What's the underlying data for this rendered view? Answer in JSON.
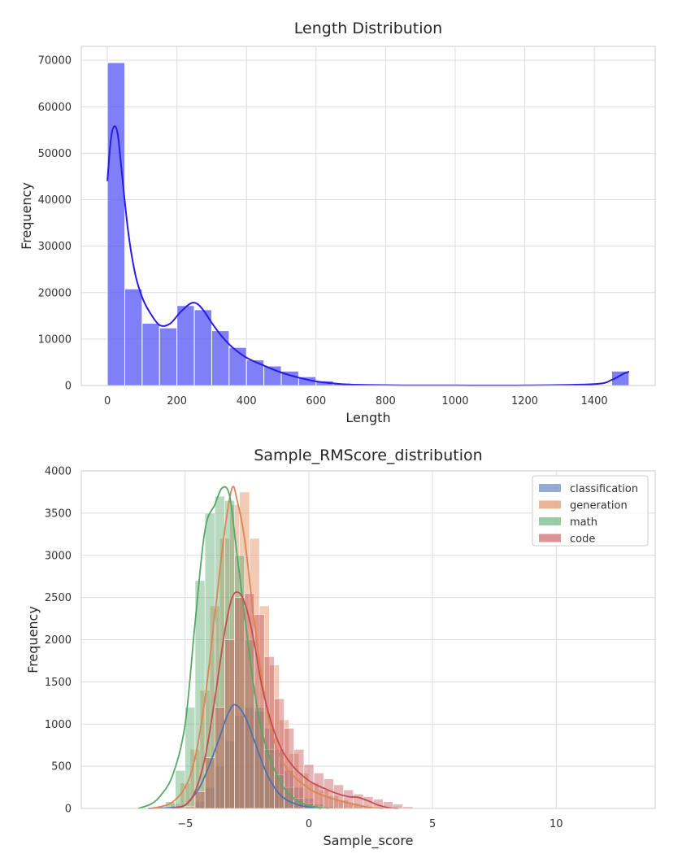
{
  "chart_data": [
    {
      "type": "histogram",
      "title": "Length Distribution",
      "xlabel": "Length",
      "ylabel": "Frequency",
      "xlim": [
        -75,
        1575
      ],
      "ylim": [
        0,
        73000
      ],
      "xticks": [
        0,
        200,
        400,
        600,
        800,
        1000,
        1200,
        1400
      ],
      "yticks": [
        0,
        10000,
        20000,
        30000,
        40000,
        50000,
        60000,
        70000
      ],
      "grid": true,
      "bin_width": 50,
      "bar_color": "#5b5bf5",
      "kde_color": "#2a1ae6",
      "bins": [
        {
          "x0": 0,
          "x1": 50,
          "value": 69500
        },
        {
          "x0": 50,
          "x1": 100,
          "value": 20800
        },
        {
          "x0": 100,
          "x1": 150,
          "value": 13400
        },
        {
          "x0": 150,
          "x1": 200,
          "value": 12400
        },
        {
          "x0": 200,
          "x1": 250,
          "value": 17200
        },
        {
          "x0": 250,
          "x1": 300,
          "value": 16300
        },
        {
          "x0": 300,
          "x1": 350,
          "value": 11800
        },
        {
          "x0": 350,
          "x1": 400,
          "value": 8200
        },
        {
          "x0": 400,
          "x1": 450,
          "value": 5500
        },
        {
          "x0": 450,
          "x1": 500,
          "value": 4200
        },
        {
          "x0": 500,
          "x1": 550,
          "value": 3100
        },
        {
          "x0": 550,
          "x1": 600,
          "value": 1900
        },
        {
          "x0": 600,
          "x1": 650,
          "value": 1000
        },
        {
          "x0": 650,
          "x1": 700,
          "value": 500
        },
        {
          "x0": 700,
          "x1": 750,
          "value": 250
        },
        {
          "x0": 750,
          "x1": 800,
          "value": 120
        },
        {
          "x0": 800,
          "x1": 850,
          "value": 60
        },
        {
          "x0": 850,
          "x1": 900,
          "value": 30
        },
        {
          "x0": 1450,
          "x1": 1500,
          "value": 3100
        }
      ],
      "kde": {
        "x": [
          0,
          10,
          20,
          30,
          40,
          60,
          80,
          100,
          120,
          150,
          180,
          210,
          240,
          260,
          280,
          300,
          330,
          360,
          400,
          450,
          500,
          550,
          600,
          650,
          700,
          800,
          900,
          1000,
          1200,
          1400,
          1450,
          1480,
          1500
        ],
        "y": [
          44000,
          53000,
          55800,
          54000,
          47000,
          33000,
          24000,
          19000,
          16000,
          13000,
          13300,
          15800,
          17700,
          17500,
          15800,
          13500,
          10500,
          8200,
          6000,
          4300,
          2800,
          1700,
          900,
          450,
          200,
          80,
          40,
          30,
          30,
          300,
          1200,
          2400,
          3000
        ]
      }
    },
    {
      "type": "histogram",
      "title": "Sample_RMScore_distribution",
      "xlabel": "Sample_score",
      "ylabel": "Frequency",
      "xlim": [
        -9.2,
        14.0
      ],
      "ylim": [
        0,
        4000
      ],
      "xticks": [
        -5,
        0,
        5,
        10
      ],
      "xtick_labels": [
        "−5",
        "0",
        "5",
        "10"
      ],
      "yticks": [
        0,
        500,
        1000,
        1500,
        2000,
        2500,
        3000,
        3500,
        4000
      ],
      "grid": true,
      "bin_width": 0.4,
      "legend_position": "top-right",
      "series": [
        {
          "name": "classification",
          "color": "#4c72b0",
          "bins_start": -5.0,
          "values": [
            0,
            80,
            250,
            500,
            800,
            1100,
            1200,
            1150,
            950,
            700,
            450,
            250,
            120,
            50,
            20
          ],
          "kde": {
            "x": [
              -6.5,
              -5.2,
              -4.8,
              -4.4,
              -4.0,
              -3.6,
              -3.3,
              -3.0,
              -2.6,
              -2.2,
              -1.8,
              -1.4,
              -1.0,
              -0.5,
              0.0,
              0.5
            ],
            "y": [
              0,
              20,
              100,
              260,
              530,
              850,
              1100,
              1230,
              1100,
              800,
              480,
              250,
              120,
              50,
              15,
              0
            ]
          }
        },
        {
          "name": "generation",
          "color": "#dd8452",
          "bins_start": -5.6,
          "values": [
            60,
            300,
            700,
            1400,
            2400,
            3200,
            3600,
            3750,
            3200,
            2400,
            1700,
            1050,
            650,
            420,
            300,
            220,
            150,
            100,
            60,
            30
          ],
          "kde": {
            "x": [
              -6.4,
              -5.6,
              -5.0,
              -4.6,
              -4.2,
              -3.8,
              -3.4,
              -3.1,
              -2.9,
              -2.6,
              -2.2,
              -1.8,
              -1.4,
              -1.0,
              -0.6,
              -0.2,
              0.2,
              0.8,
              1.4,
              2.0,
              2.5,
              3.0
            ],
            "y": [
              0,
              60,
              250,
              600,
              1300,
              2300,
              3300,
              3800,
              3650,
              3200,
              2200,
              1350,
              800,
              520,
              380,
              280,
              200,
              130,
              80,
              40,
              10,
              0
            ]
          }
        },
        {
          "name": "math",
          "color": "#55a868",
          "bins_start": -5.8,
          "values": [
            80,
            450,
            1200,
            2700,
            3500,
            3700,
            3650,
            3000,
            2000,
            1200,
            700,
            400,
            250,
            120,
            60,
            20
          ],
          "kde": {
            "x": [
              -6.9,
              -6.4,
              -6.0,
              -5.5,
              -5.0,
              -4.6,
              -4.2,
              -3.8,
              -3.5,
              -3.2,
              -2.9,
              -2.6,
              -2.3,
              -2.0,
              -1.7,
              -1.3,
              -0.9,
              -0.4,
              0.2,
              0.8
            ],
            "y": [
              0,
              50,
              150,
              400,
              1000,
              2200,
              3300,
              3600,
              3800,
              3700,
              3000,
              2300,
              1600,
              1050,
              700,
              400,
              200,
              80,
              20,
              0
            ]
          }
        },
        {
          "name": "code",
          "color": "#c44e52",
          "bins_start": -5.0,
          "values": [
            20,
            200,
            600,
            1200,
            2000,
            2500,
            2550,
            2300,
            1800,
            1300,
            950,
            700,
            520,
            420,
            350,
            280,
            220,
            170,
            140,
            110,
            80,
            50,
            20
          ],
          "kde": {
            "x": [
              -5.5,
              -5.0,
              -4.6,
              -4.2,
              -3.8,
              -3.4,
              -3.1,
              -2.8,
              -2.5,
              -2.2,
              -1.9,
              -1.5,
              -1.1,
              -0.7,
              -0.3,
              0.1,
              0.6,
              1.1,
              1.6,
              2.0,
              2.4,
              2.8,
              3.2,
              3.6
            ],
            "y": [
              0,
              40,
              200,
              600,
              1300,
              2100,
              2500,
              2550,
              2350,
              1950,
              1450,
              1000,
              700,
              520,
              400,
              310,
              240,
              180,
              140,
              130,
              90,
              40,
              10,
              0
            ]
          }
        }
      ]
    }
  ]
}
